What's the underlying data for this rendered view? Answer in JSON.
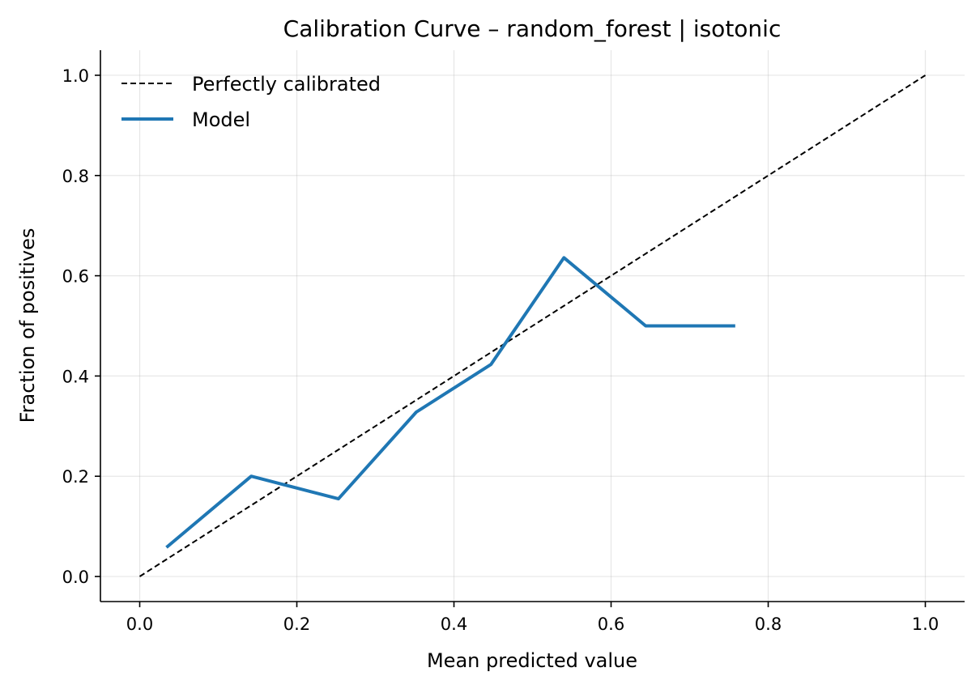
{
  "chart_data": {
    "type": "line",
    "title": "Calibration Curve – random_forest | isotonic",
    "xlabel": "Mean predicted value",
    "ylabel": "Fraction of positives",
    "xlim": [
      -0.05,
      1.05
    ],
    "ylim": [
      -0.05,
      1.05
    ],
    "xticks": [
      0.0,
      0.2,
      0.4,
      0.6,
      0.8,
      1.0
    ],
    "yticks": [
      0.0,
      0.2,
      0.4,
      0.6,
      0.8,
      1.0
    ],
    "xtick_labels": [
      "0.0",
      "0.2",
      "0.4",
      "0.6",
      "0.8",
      "1.0"
    ],
    "ytick_labels": [
      "0.0",
      "0.2",
      "0.4",
      "0.6",
      "0.8",
      "1.0"
    ],
    "grid": true,
    "legend_position": "top-left",
    "series": [
      {
        "name": "Perfectly calibrated",
        "style": "dashed",
        "color": "#000000",
        "x": [
          0.0,
          1.0
        ],
        "y": [
          0.0,
          1.0
        ]
      },
      {
        "name": "Model",
        "style": "solid",
        "color": "#1f77b4",
        "x": [
          0.034,
          0.142,
          0.253,
          0.352,
          0.447,
          0.54,
          0.644,
          0.758
        ],
        "y": [
          0.058,
          0.2,
          0.155,
          0.328,
          0.423,
          0.636,
          0.5,
          0.5
        ]
      }
    ]
  }
}
